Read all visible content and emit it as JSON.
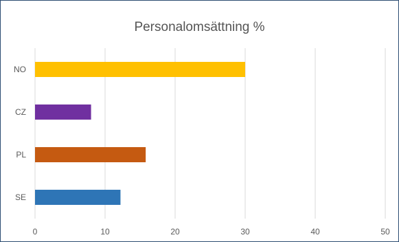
{
  "chart_data": {
    "type": "bar",
    "orientation": "horizontal",
    "title": "Personalomsättning %",
    "categories": [
      "NO",
      "CZ",
      "PL",
      "SE"
    ],
    "values": [
      30,
      8,
      15.8,
      12.2
    ],
    "colors": [
      "#ffc000",
      "#7030a0",
      "#c55a11",
      "#2e75b6"
    ],
    "xlim": [
      0,
      50
    ],
    "xticks": [
      "0",
      "10",
      "20",
      "30",
      "40",
      "50"
    ],
    "xlabel": "",
    "ylabel": "",
    "grid": "vertical",
    "legend": "none"
  }
}
